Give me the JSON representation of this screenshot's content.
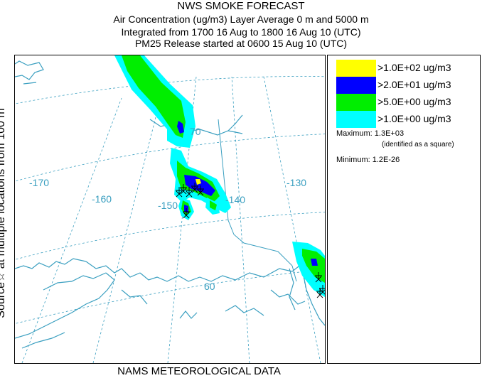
{
  "header": {
    "title": "NWS SMOKE FORECAST",
    "line2": "Air Concentration (ug/m3) Layer Average    0 m and  5000 m",
    "line3": "Integrated from 1700 16 Aug to 1800 16 Aug 10 (UTC)",
    "line4": "PM25 Release started at 0600 15 Aug 10 (UTC)"
  },
  "side_label": "Source☆ at multiple locations   from   100 m",
  "footer": "NAMS METEOROLOGICAL DATA",
  "map": {
    "longitude_labels": [
      "-170",
      "-160",
      "-150",
      "-140",
      "-130"
    ],
    "latitude_labels": [
      "70",
      "60"
    ],
    "colors": {
      "coast": "#3a9fc0",
      "grid": "#3a9fc0",
      "border": "#3a9fc0"
    }
  },
  "legend": {
    "items": [
      {
        "label": ">1.0E+02 ug/m3",
        "color": "#ffff00"
      },
      {
        "label": ">2.0E+01 ug/m3",
        "color": "#0000ff"
      },
      {
        "label": ">5.0E+00 ug/m3",
        "color": "#00ee00"
      },
      {
        "label": ">1.0E+00 ug/m3",
        "color": "#00ffff"
      }
    ],
    "maximum": "Maximum: 1.3E+03",
    "maximum_note": "(identified as a square)",
    "minimum": "Minimum: 1.2E-26"
  }
}
